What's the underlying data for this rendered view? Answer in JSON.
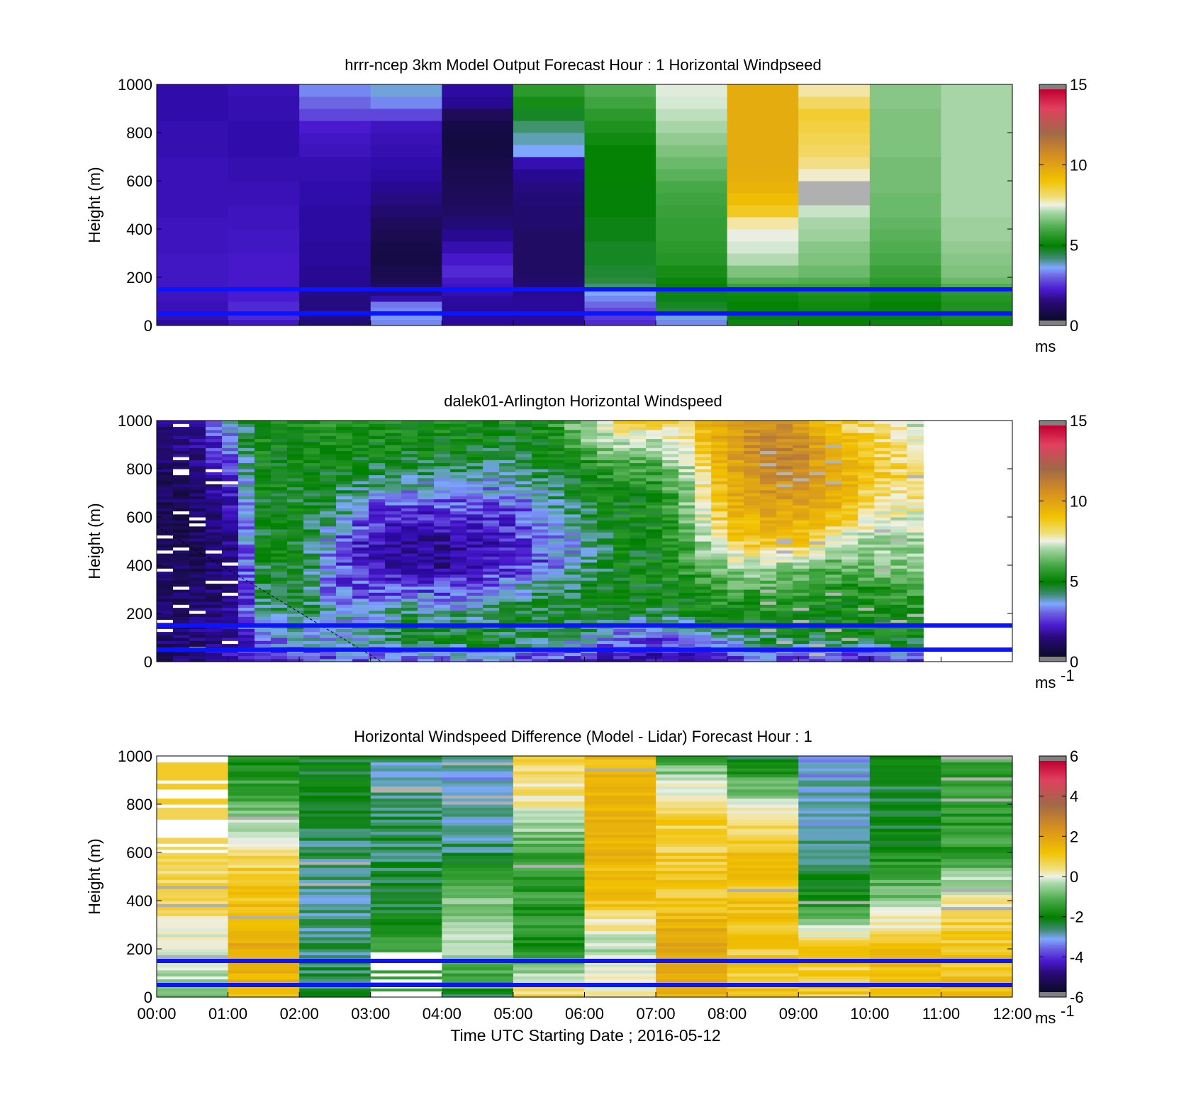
{
  "chart_data": [
    {
      "type": "heatmap",
      "title": "hrrr-ncep 3km Model Output   Forecast Hour : 1 Horizontal Windpseed",
      "ylabel": "Height (m)",
      "xlabel": "",
      "x_range_hours": [
        0,
        12
      ],
      "ylim": [
        0,
        1000
      ],
      "yticks": [
        "0",
        "200",
        "400",
        "600",
        "800",
        "1000"
      ],
      "colorbar": {
        "range": [
          0,
          15
        ],
        "ticks": [
          "0",
          "5",
          "10",
          "15"
        ],
        "unit": "ms",
        "unit_sup": ""
      },
      "blue_lines_height_m": [
        50,
        150
      ],
      "x_blocks": 12,
      "levels_top_m": [
        25,
        50,
        75,
        100,
        125,
        150,
        175,
        200,
        250,
        300,
        350,
        400,
        450,
        500,
        550,
        600,
        650,
        700,
        750,
        800,
        850,
        900,
        950,
        1000
      ],
      "column_speeds": [
        [
          2.0,
          2.2,
          2.3,
          2.3,
          2.4,
          2.4,
          2.5,
          2.5,
          2.5,
          2.5,
          2.4,
          2.4,
          2.4,
          2.3,
          2.3,
          2.3,
          2.3,
          2.3,
          2.2,
          2.2,
          2.2,
          2.1,
          2.1,
          2.1
        ],
        [
          2.5,
          2.8,
          2.8,
          2.8,
          2.7,
          2.7,
          2.6,
          2.6,
          2.6,
          2.6,
          2.5,
          2.5,
          2.4,
          2.4,
          2.3,
          2.3,
          2.2,
          2.2,
          2.1,
          2.1,
          2.1,
          2.2,
          2.2,
          2.3
        ],
        [
          1.5,
          1.6,
          1.6,
          1.6,
          1.6,
          1.7,
          1.7,
          1.8,
          1.8,
          1.9,
          1.9,
          2.0,
          2.0,
          2.0,
          2.1,
          2.1,
          2.2,
          2.2,
          2.4,
          2.5,
          2.7,
          3.0,
          3.2,
          3.4
        ],
        [
          3.4,
          3.5,
          3.4,
          3.3,
          2.2,
          1.6,
          1.3,
          1.1,
          0.9,
          0.7,
          0.8,
          1.0,
          1.2,
          1.4,
          1.6,
          1.8,
          2.0,
          2.1,
          2.2,
          2.3,
          2.4,
          3.0,
          3.4,
          3.8
        ],
        [
          1.9,
          1.9,
          1.9,
          1.9,
          2.0,
          2.2,
          2.4,
          2.6,
          2.8,
          2.6,
          2.2,
          1.8,
          1.5,
          1.3,
          1.2,
          1.1,
          1.0,
          0.8,
          0.6,
          0.6,
          0.7,
          1.2,
          1.8,
          2.0
        ],
        [
          1.9,
          1.9,
          1.9,
          1.9,
          1.9,
          1.7,
          1.5,
          1.4,
          1.3,
          1.3,
          1.3,
          1.3,
          1.4,
          1.4,
          1.5,
          1.6,
          1.8,
          2.2,
          3.6,
          4.0,
          4.3,
          4.7,
          5.3,
          5.6
        ],
        [
          2.8,
          2.9,
          3.0,
          3.2,
          3.4,
          3.6,
          4.3,
          4.5,
          4.6,
          4.7,
          4.7,
          4.8,
          4.8,
          4.9,
          4.9,
          4.9,
          5.0,
          5.0,
          5.0,
          5.2,
          5.4,
          5.6,
          5.9,
          6.1
        ],
        [
          3.4,
          3.8,
          4.6,
          4.7,
          4.8,
          4.8,
          5.0,
          5.1,
          5.3,
          5.5,
          5.6,
          5.7,
          5.7,
          5.8,
          5.9,
          6.0,
          6.2,
          6.4,
          6.6,
          6.8,
          7.0,
          7.2,
          7.4,
          7.5
        ],
        [
          4.8,
          4.9,
          5.0,
          5.0,
          5.1,
          5.2,
          5.8,
          6.2,
          6.6,
          7.1,
          7.4,
          7.6,
          8.0,
          8.8,
          9.2,
          9.6,
          9.8,
          9.9,
          9.9,
          9.9,
          9.9,
          9.9,
          9.9,
          9.9
        ],
        [
          4.9,
          5.0,
          5.1,
          5.2,
          5.3,
          5.4,
          5.8,
          6.1,
          6.4,
          6.6,
          6.7,
          6.9,
          7.0,
          7.3,
          -1,
          -1,
          7.8,
          8.2,
          8.4,
          8.5,
          8.6,
          8.7,
          8.4,
          8.0
        ],
        [
          4.8,
          4.9,
          4.9,
          5.0,
          5.1,
          5.2,
          5.4,
          5.6,
          5.8,
          6.0,
          6.1,
          6.2,
          6.3,
          6.4,
          6.4,
          6.5,
          6.5,
          6.5,
          6.6,
          6.6,
          6.6,
          6.6,
          6.7,
          6.7
        ],
        [
          5.2,
          5.3,
          5.4,
          5.4,
          5.5,
          5.6,
          6.1,
          6.4,
          6.6,
          6.7,
          6.8,
          6.9,
          6.9,
          7.0,
          7.0,
          7.0,
          7.0,
          7.0,
          7.0,
          7.0,
          7.0,
          7.0,
          7.0,
          7.0
        ]
      ]
    },
    {
      "type": "heatmap",
      "title": "dalek01-Arlington  Horizontal Windspeed",
      "ylabel": "Height (m)",
      "xlabel": "",
      "x_range_hours": [
        0,
        12
      ],
      "ylim": [
        0,
        1000
      ],
      "yticks": [
        "0",
        "200",
        "400",
        "600",
        "800",
        "1000"
      ],
      "colorbar": {
        "range": [
          0,
          15
        ],
        "ticks": [
          "0",
          "5",
          "10",
          "15"
        ],
        "unit": "ms",
        "unit_sup": "-1"
      },
      "blue_lines_height_m": [
        50,
        150
      ],
      "data_extent_hours": [
        0,
        10.75
      ],
      "description_profile_speeds_ms": {
        "times_h": [
          0.0,
          0.5,
          1.0,
          1.5,
          2.0,
          2.5,
          3.0,
          3.5,
          4.0,
          4.5,
          5.0,
          5.5,
          6.0,
          6.5,
          7.0,
          7.5,
          8.0,
          8.5,
          9.0,
          9.5,
          10.0,
          10.5
        ],
        "heights_m": [
          0,
          100,
          200,
          300,
          400,
          500,
          600,
          700,
          800,
          900,
          1000
        ],
        "speeds": [
          [
            1.3,
            1.3,
            1.2,
            1.1,
            1.0,
            1.0,
            1.1,
            1.2,
            1.3,
            1.6,
            1.8
          ],
          [
            1.6,
            1.5,
            1.3,
            1.2,
            1.0,
            1.0,
            1.0,
            1.1,
            1.4,
            1.7,
            1.9
          ],
          [
            2.2,
            2.0,
            1.7,
            1.5,
            1.4,
            1.6,
            2.0,
            2.4,
            2.9,
            3.3,
            3.6
          ],
          [
            2.5,
            3.3,
            4.0,
            4.7,
            4.8,
            4.9,
            4.9,
            5.0,
            5.1,
            5.2,
            5.3
          ],
          [
            3.0,
            3.9,
            4.6,
            4.8,
            4.8,
            4.8,
            4.8,
            4.8,
            4.9,
            5.1,
            5.2
          ],
          [
            3.2,
            3.6,
            3.8,
            3.2,
            3.2,
            3.3,
            4.2,
            4.6,
            5.0,
            5.2,
            5.4
          ],
          [
            3.0,
            4.0,
            3.8,
            2.9,
            2.4,
            2.3,
            2.8,
            3.8,
            4.6,
            5.1,
            5.4
          ],
          [
            2.8,
            4.6,
            4.2,
            3.2,
            2.1,
            1.9,
            2.4,
            3.6,
            4.4,
            5.0,
            5.3
          ],
          [
            3.0,
            4.8,
            4.0,
            3.0,
            1.8,
            1.9,
            2.6,
            3.4,
            4.5,
            5.0,
            5.3
          ],
          [
            3.2,
            4.9,
            4.2,
            3.2,
            2.2,
            2.1,
            2.6,
            3.4,
            4.3,
            4.9,
            5.2
          ],
          [
            3.1,
            4.6,
            4.5,
            3.8,
            2.8,
            2.6,
            2.9,
            3.5,
            4.0,
            4.8,
            5.2
          ],
          [
            2.8,
            4.4,
            4.7,
            4.2,
            3.2,
            3.4,
            3.8,
            4.1,
            4.7,
            5.0,
            5.3
          ],
          [
            2.4,
            4.0,
            4.8,
            4.6,
            4.1,
            3.8,
            4.3,
            4.9,
            5.1,
            6.2,
            7.0
          ],
          [
            2.2,
            3.2,
            4.7,
            4.9,
            4.9,
            4.9,
            5.0,
            5.1,
            5.8,
            7.2,
            8.3
          ],
          [
            2.0,
            3.0,
            4.5,
            5.0,
            5.1,
            5.0,
            5.1,
            5.3,
            5.9,
            7.0,
            8.6
          ],
          [
            2.3,
            3.3,
            4.8,
            5.4,
            5.8,
            6.2,
            6.6,
            6.8,
            7.3,
            8.2,
            9.0
          ],
          [
            2.6,
            4.0,
            5.2,
            5.9,
            7.0,
            8.5,
            9.2,
            9.7,
            9.9,
            10.2,
            10.4
          ],
          [
            2.8,
            4.4,
            5.3,
            6.0,
            7.2,
            9.2,
            9.9,
            10.6,
            11.1,
            11.3,
            11.0
          ],
          [
            2.6,
            4.6,
            5.2,
            5.6,
            6.8,
            8.8,
            9.8,
            10.7,
            11.2,
            11.2,
            10.6
          ],
          [
            2.4,
            4.8,
            5.1,
            5.4,
            6.2,
            7.4,
            9.2,
            9.9,
            9.8,
            9.4,
            8.9
          ],
          [
            2.5,
            5.0,
            5.2,
            5.6,
            6.5,
            7.1,
            7.9,
            8.6,
            9.1,
            8.6,
            8.2
          ],
          [
            2.6,
            5.0,
            5.3,
            5.8,
            6.7,
            7.0,
            7.5,
            8.3,
            8.4,
            7.8,
            7.4
          ]
        ]
      }
    },
    {
      "type": "heatmap",
      "title": "Horizontal Windspeed Difference (Model - Lidar) Forecast Hour : 1",
      "ylabel": "Height (m)",
      "xlabel": "Time UTC  Starting Date ; 2016-05-12",
      "xticks": [
        "00:00",
        "01:00",
        "02:00",
        "03:00",
        "04:00",
        "05:00",
        "06:00",
        "07:00",
        "08:00",
        "09:00",
        "10:00",
        "11:00",
        "12:00"
      ],
      "x_range_hours": [
        0,
        12
      ],
      "ylim": [
        0,
        1000
      ],
      "yticks": [
        "0",
        "200",
        "400",
        "600",
        "800",
        "1000"
      ],
      "colorbar": {
        "range": [
          -6,
          6
        ],
        "ticks": [
          "-6",
          "-4",
          "-2",
          "0",
          "2",
          "4",
          "6"
        ],
        "unit": "ms",
        "unit_sup": "-1"
      },
      "blue_lines_height_m": [
        50,
        150
      ],
      "x_blocks": 12,
      "column_difference_profiles": [
        {
          "heights_m": [
            0,
            200,
            400,
            600,
            800,
            1000
          ],
          "diff": [
            -0.4,
            -0.2,
            0.7,
            0.8,
            null,
            1.0
          ]
        },
        {
          "heights_m": [
            0,
            200,
            400,
            600,
            800,
            1000
          ],
          "diff": [
            1.3,
            2.0,
            1.2,
            0.6,
            -1.0,
            -1.8
          ]
        },
        {
          "heights_m": [
            0,
            200,
            400,
            600,
            800,
            1000
          ],
          "diff": [
            -2.4,
            -2.6,
            -2.7,
            -2.6,
            -2.3,
            -2.1
          ]
        },
        {
          "heights_m": [
            0,
            200,
            400,
            600,
            800,
            1000
          ],
          "diff": [
            null,
            -1.4,
            -2.3,
            -2.4,
            -2.6,
            -2.7
          ]
        },
        {
          "heights_m": [
            0,
            200,
            400,
            600,
            800,
            1000
          ],
          "diff": [
            -2.4,
            -0.2,
            -0.8,
            -2.5,
            -2.9,
            -3.0
          ]
        },
        {
          "heights_m": [
            0,
            200,
            400,
            600,
            800,
            1000
          ],
          "diff": [
            1.0,
            -1.7,
            -1.5,
            -1.4,
            0.3,
            1.0
          ]
        },
        {
          "heights_m": [
            0,
            200,
            400,
            600,
            800,
            1000
          ],
          "diff": [
            0.5,
            -0.4,
            1.2,
            1.6,
            1.6,
            1.4
          ]
        },
        {
          "heights_m": [
            0,
            200,
            400,
            600,
            800,
            1000
          ],
          "diff": [
            1.5,
            2.2,
            1.2,
            1.0,
            0.8,
            -1.4
          ]
        },
        {
          "heights_m": [
            0,
            200,
            400,
            600,
            800,
            1000
          ],
          "diff": [
            1.2,
            1.0,
            1.3,
            1.3,
            -0.1,
            -2.2
          ]
        },
        {
          "heights_m": [
            0,
            200,
            400,
            600,
            800,
            1000
          ],
          "diff": [
            1.0,
            1.0,
            -1.8,
            -2.8,
            -2.9,
            -3.0
          ]
        },
        {
          "heights_m": [
            0,
            200,
            400,
            600,
            800,
            1000
          ],
          "diff": [
            1.2,
            1.5,
            -0.6,
            -1.8,
            -2.4,
            -2.0
          ]
        },
        {
          "heights_m": [
            0,
            200,
            400,
            600,
            800,
            1000
          ],
          "diff": [
            1.3,
            1.2,
            0.4,
            -1.4,
            -1.6,
            -1.3
          ]
        }
      ]
    }
  ]
}
